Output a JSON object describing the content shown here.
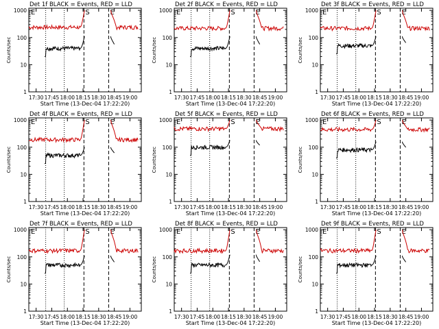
{
  "figure": {
    "start_time_label": "Start Time (13-Dec-04 17:22:20)",
    "ylabel": "Counts/sec"
  },
  "chart_data": [
    {
      "type": "line",
      "title": "Det 1f BLACK = Events, RED = LLD",
      "events_level": 40,
      "lld_level": 240,
      "events_peak": 110,
      "lld_peak": 1000
    },
    {
      "type": "line",
      "title": "Det 2f BLACK = Events, RED = LLD",
      "events_level": 40,
      "lld_level": 220,
      "events_peak": 110,
      "lld_peak": 1000
    },
    {
      "type": "line",
      "title": "Det 3f BLACK = Events, RED = LLD",
      "events_level": 50,
      "lld_level": 220,
      "events_peak": 110,
      "lld_peak": 1000
    },
    {
      "type": "line",
      "title": "Det 4f BLACK = Events, RED = LLD",
      "events_level": 50,
      "lld_level": 190,
      "events_peak": 100,
      "lld_peak": 1000
    },
    {
      "type": "line",
      "title": "Det 5f BLACK = Events, RED = LLD",
      "events_level": 100,
      "lld_level": 480,
      "events_peak": 180,
      "lld_peak": 1000
    },
    {
      "type": "line",
      "title": "Det 6f BLACK = Events, RED = LLD",
      "events_level": 80,
      "lld_level": 450,
      "events_peak": 160,
      "lld_peak": 1000
    },
    {
      "type": "line",
      "title": "Det 7f BLACK = Events, RED = LLD",
      "events_level": 50,
      "lld_level": 170,
      "events_peak": 110,
      "lld_peak": 1000
    },
    {
      "type": "line",
      "title": "Det 8f BLACK = Events, RED = LLD",
      "events_level": 50,
      "lld_level": 170,
      "events_peak": 120,
      "lld_peak": 1000
    },
    {
      "type": "line",
      "title": "Det 9f BLACK = Events, RED = LLD",
      "events_level": 50,
      "lld_level": 170,
      "events_peak": 110,
      "lld_peak": 1000
    }
  ],
  "shared_axes": {
    "xlabel": "Start Time (13-Dec-04 17:22:20)",
    "ylabel": "Counts/sec",
    "x_ticks": [
      "17:30",
      "17:45",
      "18:00",
      "18:15",
      "18:30",
      "18:45",
      "19:00"
    ],
    "y_ticks": [
      "1",
      "10",
      "100",
      "1000"
    ],
    "yscale": "log",
    "ylim": [
      1,
      1200
    ],
    "markers": [
      "E",
      "S",
      "E"
    ],
    "series": [
      {
        "name": "Events",
        "color": "#000000"
      },
      {
        "name": "LLD",
        "color": "#cc0000"
      }
    ]
  }
}
